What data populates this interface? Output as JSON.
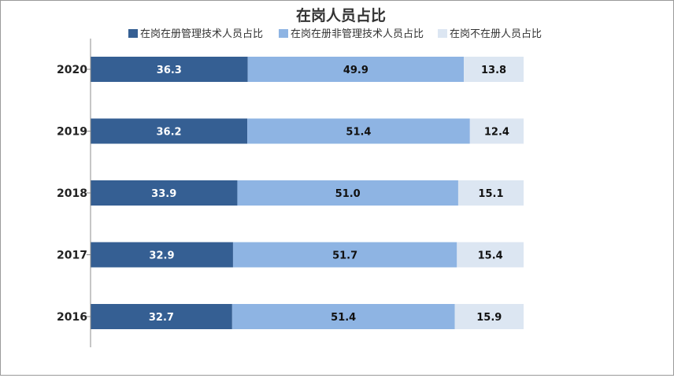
{
  "chart_data": {
    "type": "bar",
    "orientation": "horizontal",
    "stacked": true,
    "title": "在岗人员占比",
    "categories": [
      "2020",
      "2019",
      "2018",
      "2017",
      "2016"
    ],
    "series": [
      {
        "name": "在岗在册管理技术人员占比",
        "values": [
          36.3,
          36.2,
          33.9,
          32.9,
          32.7
        ],
        "color": "#355F93",
        "label_color": "#ffffff"
      },
      {
        "name": "在岗在册非管理技术人员占比",
        "values": [
          49.9,
          51.4,
          51.0,
          51.7,
          51.4
        ],
        "color": "#8EB4E3",
        "label_color": "#111111"
      },
      {
        "name": "在岗不在册人员占比",
        "values": [
          13.8,
          12.4,
          15.1,
          15.4,
          15.9
        ],
        "color": "#DCE6F2",
        "label_color": "#111111"
      }
    ],
    "xlim": [
      0,
      100
    ],
    "legend_position": "top",
    "xlabel": "",
    "ylabel": ""
  }
}
